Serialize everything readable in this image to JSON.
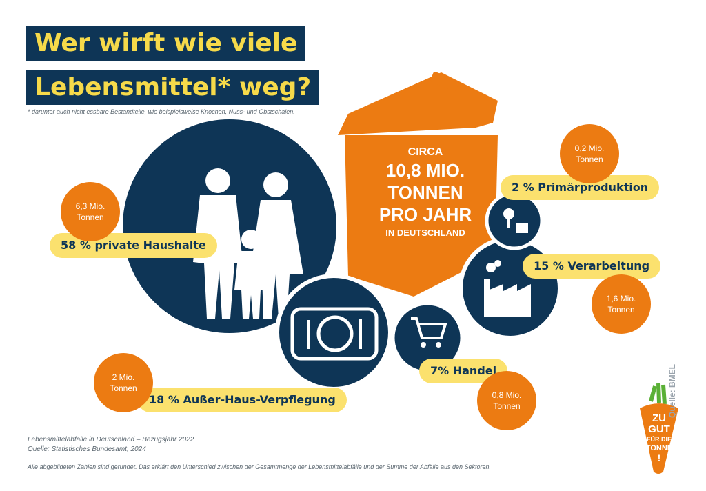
{
  "title": {
    "line1": "Wer wirft wie viele",
    "line2": "Lebensmittel* weg?"
  },
  "footnote": "* darunter auch nicht essbare Bestandteile, wie beispielsweise Knochen, Nuss- und Obstschalen.",
  "center": {
    "line1": "CIRCA",
    "line2": "10,8 MIO.",
    "line3": "TONNEN",
    "line4": "PRO JAHR",
    "line5": "IN DEUTSCHLAND"
  },
  "chart_data": {
    "type": "pie",
    "title": "Wer wirft wie viele Lebensmittel* weg?",
    "total_mio_tonnen": 10.8,
    "unit": "Mio. Tonnen",
    "categories": [
      "private Haushalte",
      "Außer-Haus-Verpflegung",
      "Verarbeitung",
      "Handel",
      "Primärproduktion"
    ],
    "percent": [
      58,
      18,
      15,
      7,
      2
    ],
    "values_mio_tonnen": [
      6.3,
      2,
      1.6,
      0.8,
      0.2
    ],
    "labels": {
      "private_haushalte": "58 % private Haushalte",
      "ausser_haus": "18 % Außer-Haus-Verpflegung",
      "verarbeitung": "15 % Verarbeitung",
      "handel": "7% Handel",
      "primaer": "2 % Primärproduktion"
    },
    "tonnes_labels": {
      "private_haushalte": [
        "6,3 Mio.",
        "Tonnen"
      ],
      "ausser_haus": [
        "2 Mio.",
        "Tonnen"
      ],
      "verarbeitung": [
        "1,6 Mio.",
        "Tonnen"
      ],
      "handel": [
        "0,8 Mio.",
        "Tonnen"
      ],
      "primaer": [
        "0,2 Mio.",
        "Tonnen"
      ]
    }
  },
  "sources": {
    "line1": "Lebensmittelabfälle in Deutschland – Bezugsjahr 2022",
    "line2": "Quelle: Statistisches Bundesamt, 2024",
    "note": "Alle abgebildeten Zahlen sind gerundet. Das erklärt den Unterschied zwischen der Gesamtmenge der Lebensmittelabfälle und der Summe der Abfälle aus den Sektoren.",
    "vertical": "Quelle: BMEL"
  },
  "logo": {
    "line1": "ZU",
    "line2": "GUT",
    "line3": "FÜR DIE",
    "line4": "TONNE",
    "line5": "!"
  },
  "colors": {
    "navy": "#0e3556",
    "orange": "#ec7b12",
    "yellow": "#f6da4a",
    "pill": "#fbe16e"
  },
  "icons": [
    "family-icon",
    "plate-cutlery-icon",
    "shopping-cart-icon",
    "factory-icon",
    "farm-produce-icon",
    "waste-bin-icon",
    "carrot-logo-icon"
  ]
}
